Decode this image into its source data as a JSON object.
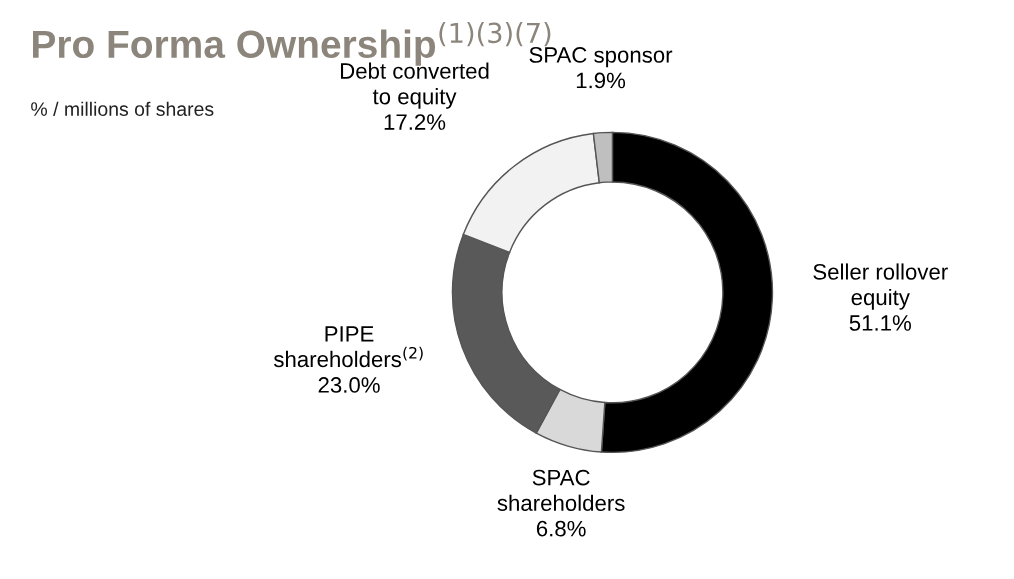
{
  "chart_data": {
    "type": "donut",
    "title": "Pro Forma Ownership$^{(1)(3)(7)}$",
    "subtitle": "% / millions of shares",
    "categories": [
      "Seller rollover\nequity",
      "SPAC\nshareholders",
      "PIPE\nshareholders$^{(2)}$",
      "Debt converted\nto equity",
      "SPAC sponsor"
    ],
    "values": [
      51.1,
      6.8,
      23.0,
      17.2,
      1.9
    ],
    "colors": [
      "#000000",
      "#d9d9d9",
      "#595959",
      "#f2f2f2",
      "#bfbfbf"
    ],
    "value_labels": [
      "51.1%",
      "6.8%",
      "23.0%",
      "17.2%",
      "1.9%"
    ],
    "legend": false
  }
}
